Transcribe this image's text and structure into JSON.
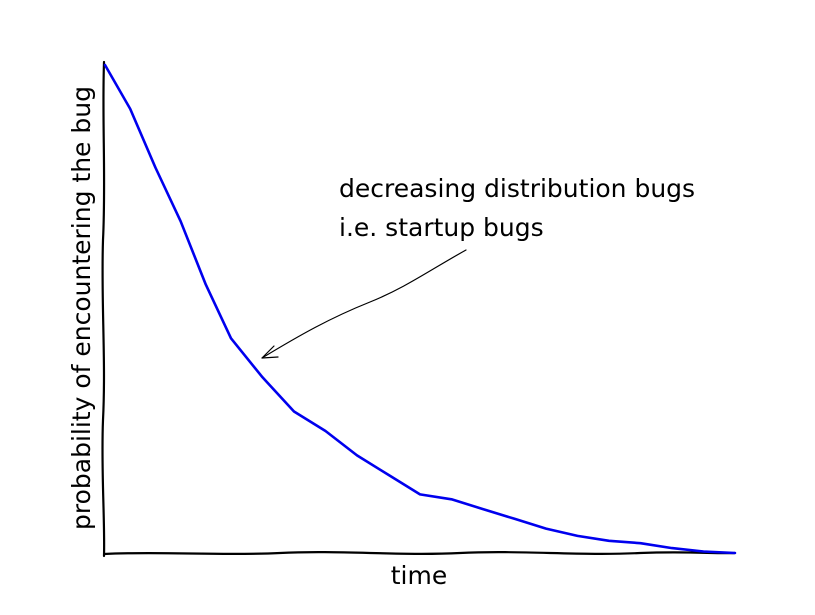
{
  "chart_data": {
    "type": "line",
    "xlabel": "time",
    "ylabel": "probability of encountering the bug",
    "xlim": [
      0,
      1
    ],
    "ylim": [
      0,
      1
    ],
    "xticks": [],
    "yticks": [],
    "grid": false,
    "style": "xkcd",
    "series": [
      {
        "color": "#0000ee",
        "x": [
          0,
          0.04,
          0.08,
          0.12,
          0.16,
          0.2,
          0.25,
          0.3,
          0.35,
          0.4,
          0.45,
          0.5,
          0.55,
          0.6,
          0.65,
          0.7,
          0.75,
          0.8,
          0.85,
          0.9,
          0.95,
          1.0
        ],
        "y": [
          1.0,
          0.91,
          0.79,
          0.68,
          0.55,
          0.44,
          0.36,
          0.29,
          0.25,
          0.2,
          0.16,
          0.12,
          0.11,
          0.09,
          0.07,
          0.05,
          0.035,
          0.025,
          0.02,
          0.01,
          0.003,
          0.0
        ]
      }
    ],
    "annotations": [
      {
        "text_lines": [
          "decreasing distribution bugs",
          "i.e. startup bugs"
        ],
        "point": [
          0.25,
          0.36
        ]
      }
    ]
  }
}
